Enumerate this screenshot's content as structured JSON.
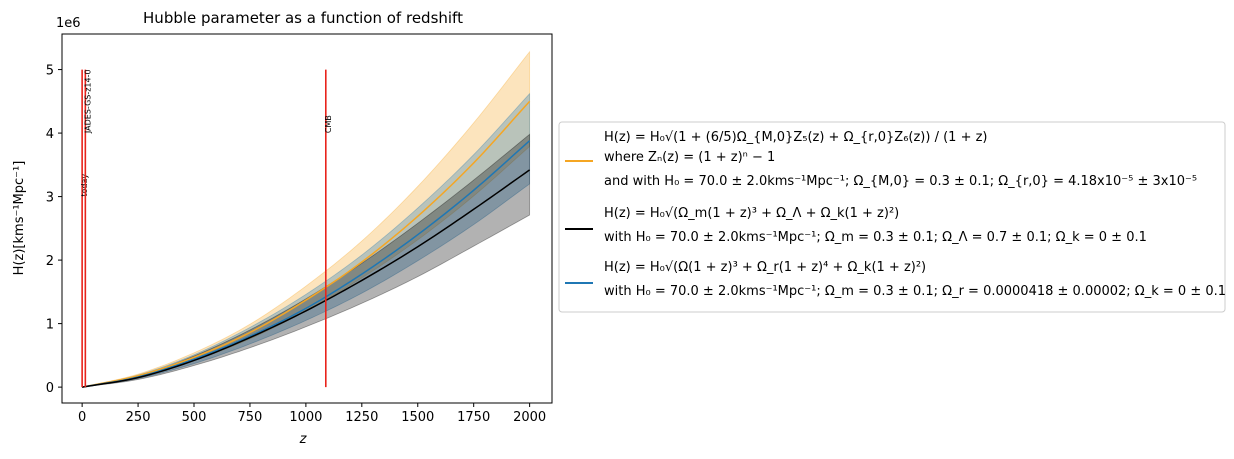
{
  "chart_data": {
    "type": "line",
    "title": "Hubble parameter as a function of redshift",
    "xlabel": "z",
    "ylabel": "H(z)[kms⁻¹Mpc⁻¹]",
    "y_multiplier": "1e6",
    "xlim": [
      -90,
      2100
    ],
    "ylim": [
      -250000,
      5560000
    ],
    "x_ticks": [
      0,
      250,
      500,
      750,
      1000,
      1250,
      1500,
      1750,
      2000
    ],
    "y_ticks": [
      0,
      1,
      2,
      3,
      4,
      5
    ],
    "x_tick_labels": [
      "0",
      "250",
      "500",
      "750",
      "1000",
      "1250",
      "1500",
      "1750",
      "2000"
    ],
    "y_tick_labels": [
      "0",
      "1",
      "2",
      "3",
      "4",
      "5"
    ],
    "grid": false,
    "legend_placement": "outside-right",
    "x": [
      0,
      250,
      500,
      750,
      1000,
      1250,
      1500,
      1750,
      2000
    ],
    "series": [
      {
        "label_lines": [
          "H(z) = H₀√(1 + (6/5)Ω_{M,0}Z₅(z) + Ω_{r,0}Z₆(z)) / (1 + z)",
          "where Zₙ(z) = (1 + z)ⁿ − 1",
          "and with H₀ = 70.0 ± 2.0kms⁻¹Mpc⁻¹; Ω_{M,0} = 0.3 ± 0.1; Ω_{r,0} = 4.18x10⁻⁵ ± 3x10⁻⁵"
        ],
        "color": "#f5a623",
        "values": [
          70,
          180000,
          470000,
          860000,
          1370000,
          1970000,
          2690000,
          3530000,
          4500000
        ],
        "lower": [
          70,
          160000,
          420000,
          760000,
          1200000,
          1720000,
          2320000,
          3010000,
          3790000
        ],
        "upper": [
          70,
          205000,
          540000,
          990000,
          1590000,
          2300000,
          3160000,
          4160000,
          5280000
        ]
      },
      {
        "label_lines": [
          "H(z) = H₀√(Ω_m(1 + z)³ + Ω_Λ + Ω_k(1 + z)²)",
          "with H₀ = 70.0 ± 2.0kms⁻¹Mpc⁻¹; Ω_m = 0.3 ± 0.1; Ω_Λ = 0.7 ± 0.1; Ω_k = 0 ± 0.1"
        ],
        "color": "#000000",
        "values": [
          70,
          150000,
          420000,
          780000,
          1200000,
          1680000,
          2210000,
          2800000,
          3420000
        ],
        "lower": [
          70,
          120000,
          340000,
          620000,
          950000,
          1320000,
          1740000,
          2220000,
          2710000
        ],
        "upper": [
          70,
          175000,
          490000,
          900000,
          1390000,
          1950000,
          2580000,
          3260000,
          3980000
        ]
      },
      {
        "label_lines": [
          "H(z) = H₀√(Ω(1 + z)³ + Ω_r(1 + z)⁴ + Ω_k(1 + z)²)",
          "with H₀ = 70.0 ± 2.0kms⁻¹Mpc⁻¹; Ω_m = 0.3 ± 0.1; Ω_r = 0.0000418 ± 0.00002; Ω_k = 0 ± 0.1"
        ],
        "color": "#1f77b4",
        "values": [
          70,
          160000,
          440000,
          800000,
          1240000,
          1780000,
          2400000,
          3100000,
          3880000
        ],
        "lower": [
          70,
          135000,
          370000,
          680000,
          1050000,
          1480000,
          1990000,
          2560000,
          3200000
        ],
        "upper": [
          70,
          190000,
          510000,
          940000,
          1460000,
          2080000,
          2820000,
          3660000,
          4620000
        ]
      }
    ],
    "vlines": [
      {
        "x": 0,
        "label": "today",
        "color": "#e8231b",
        "ymin": 0,
        "ymax": 5000000,
        "label_y": 3000000
      },
      {
        "x": 14.32,
        "label": "JADES-GS-z14-0",
        "color": "#e8231b",
        "ymin": 0,
        "ymax": 5000000,
        "label_y": 4000000
      },
      {
        "x": 1089,
        "label": "CMB",
        "color": "#e8231b",
        "ymin": 0,
        "ymax": 5000000,
        "label_y": 4000000
      }
    ]
  }
}
